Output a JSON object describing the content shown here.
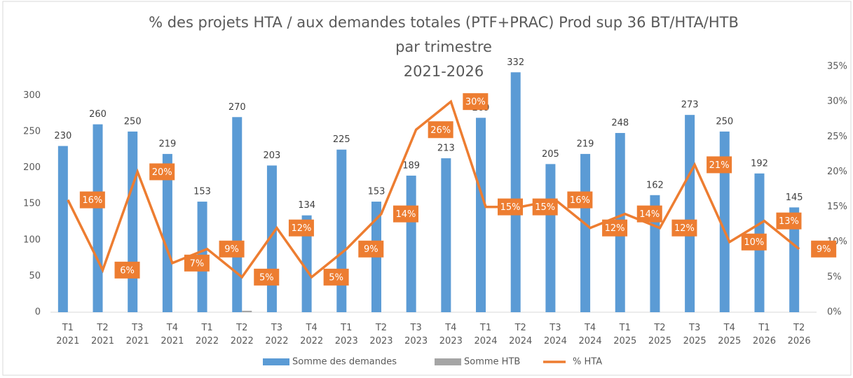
{
  "chart_data": {
    "type": "bar",
    "title": [
      "% des projets HTA / aux demandes totales (PTF+PRAC) Prod sup 36 BT/HTA/HTB",
      "par trimestre",
      "2021-2026"
    ],
    "categories": [
      "T1 2021",
      "T2 2021",
      "T3 2021",
      "T4 2021",
      "T1 2022",
      "T2 2022",
      "T3 2022",
      "T4 2022",
      "T1 2023",
      "T2 2023",
      "T3 2023",
      "T4 2023",
      "T1 2024",
      "T2 2024",
      "T3 2024",
      "T4 2024",
      "T1 2025",
      "T2 2025",
      "T3 2025",
      "T4 2025",
      "T1 2026",
      "T2 2026"
    ],
    "series": [
      {
        "name": "Somme des demandes",
        "color": "#5b9bd5",
        "type": "bar",
        "values": [
          230,
          260,
          250,
          219,
          153,
          270,
          203,
          134,
          225,
          153,
          189,
          213,
          269,
          332,
          205,
          219,
          248,
          162,
          273,
          250,
          192,
          145
        ]
      },
      {
        "name": "Somme HTB",
        "color": "#a5a5a5",
        "type": "bar",
        "values": [
          0,
          0,
          0,
          0,
          0,
          2,
          0,
          0,
          0,
          0,
          0,
          0,
          0,
          0,
          0,
          0,
          0,
          0,
          0,
          0,
          0,
          0
        ]
      },
      {
        "name": "% HTA",
        "color": "#ed7d31",
        "type": "line",
        "axis": "y2",
        "values": [
          16,
          6,
          20,
          7,
          9,
          5,
          12,
          5,
          9,
          14,
          26,
          30,
          15,
          15,
          16,
          12,
          14,
          12,
          21,
          10,
          13,
          9
        ],
        "value_labels": [
          "16%",
          "6%",
          "20%",
          "7%",
          "9%",
          "5%",
          "12%",
          "5%",
          "9%",
          "14%",
          "26%",
          "30%",
          "15%",
          "15%",
          "16%",
          "12%",
          "14%",
          "12%",
          "21%",
          "10%",
          "13%",
          "9%"
        ]
      }
    ],
    "ylim": [
      0,
      340
    ],
    "yticks": [
      0,
      50,
      100,
      150,
      200,
      250,
      300
    ],
    "y2lim": [
      0,
      35
    ],
    "y2ticks": [
      {
        "value": 0,
        "label": "0%"
      },
      {
        "value": 5,
        "label": "5%"
      },
      {
        "value": 10,
        "label": "10%"
      },
      {
        "value": 15,
        "label": "15%"
      },
      {
        "value": 20,
        "label": "20%"
      },
      {
        "value": 25,
        "label": "25%"
      },
      {
        "value": 30,
        "label": "30%"
      },
      {
        "value": 35,
        "label": "35%"
      }
    ],
    "legend": "bottom"
  }
}
